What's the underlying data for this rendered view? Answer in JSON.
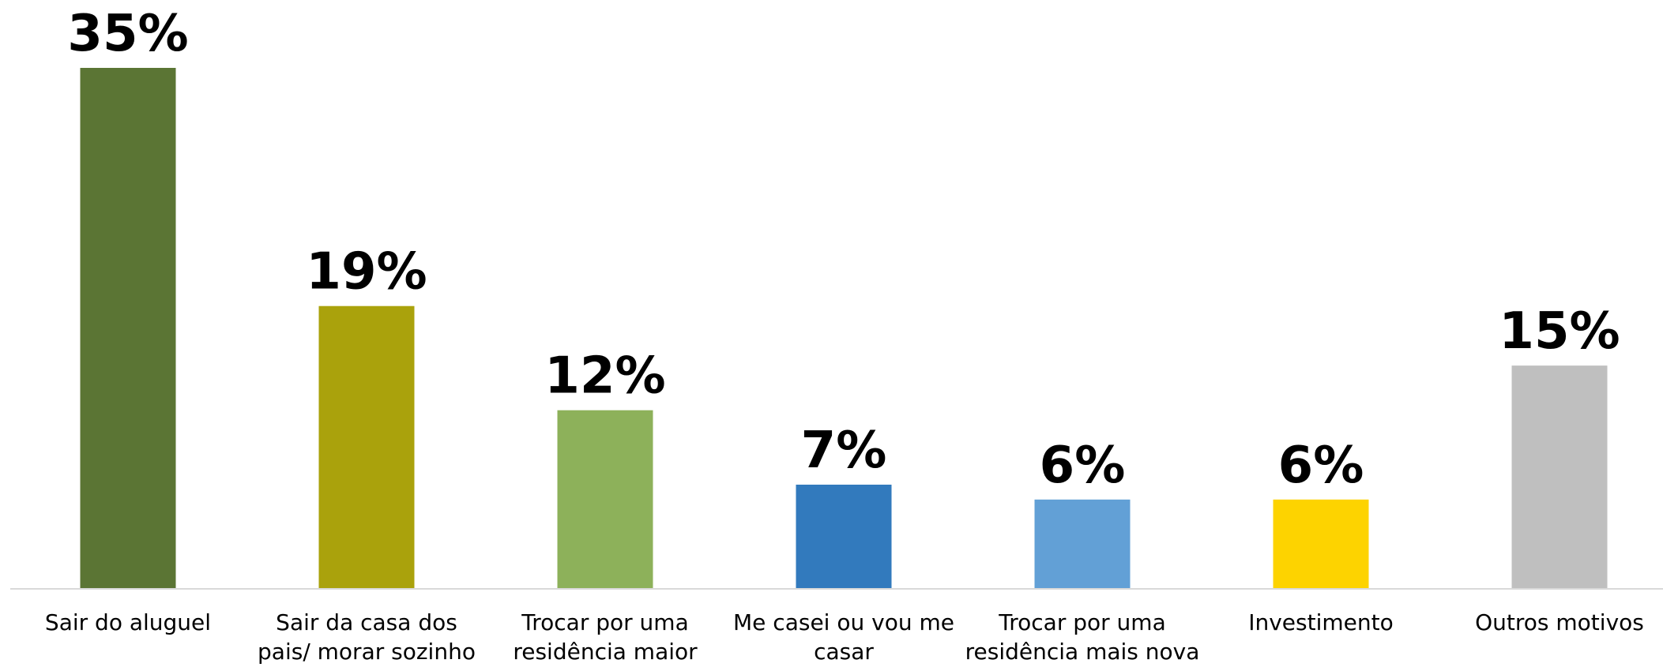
{
  "chart_data": {
    "type": "bar",
    "categories": [
      "Sair do aluguel",
      "Sair da casa dos pais/ morar sozinho",
      "Trocar por uma residência maior",
      "Me casei ou vou me casar",
      "Trocar por uma residência mais nova",
      "Investimento",
      "Outros motivos"
    ],
    "values": [
      35,
      19,
      12,
      7,
      6,
      6,
      15
    ],
    "value_labels": [
      "35%",
      "19%",
      "12%",
      "7%",
      "6%",
      "6%",
      "15%"
    ],
    "colors": [
      "#5b7534",
      "#aaa20c",
      "#8db15a",
      "#327abd",
      "#62a0d6",
      "#fdd300",
      "#bfbfbf"
    ]
  }
}
